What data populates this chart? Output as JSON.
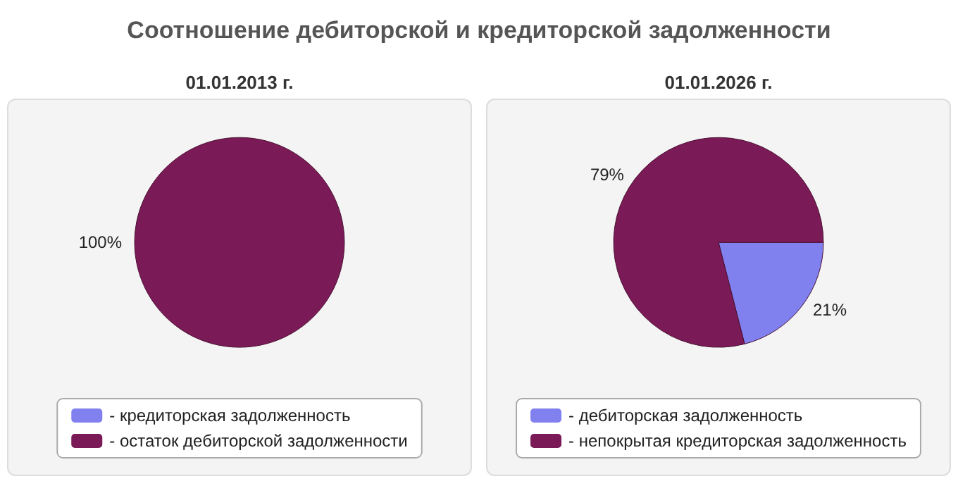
{
  "chart_data": [
    {
      "type": "pie",
      "title": "Соотношение дебиторской и кредиторской задолженности",
      "subtitle": "01.01.2013 г.",
      "categories": [
        "- кредиторская задолженность",
        "- остаток дебиторской задолженности"
      ],
      "values": [
        0,
        100
      ],
      "colors": [
        "#8080ee",
        "#7a1a56"
      ],
      "value_labels": [
        null,
        "100%"
      ],
      "legend": "bottom"
    },
    {
      "type": "pie",
      "subtitle": "01.01.2026 г.",
      "categories": [
        "- дебиторская задолженность",
        "- непокрытая кредиторская задолженность"
      ],
      "values": [
        21,
        79
      ],
      "colors": [
        "#8080ee",
        "#7a1a56"
      ],
      "value_labels": [
        "21%",
        "79%"
      ],
      "legend": "bottom"
    }
  ]
}
